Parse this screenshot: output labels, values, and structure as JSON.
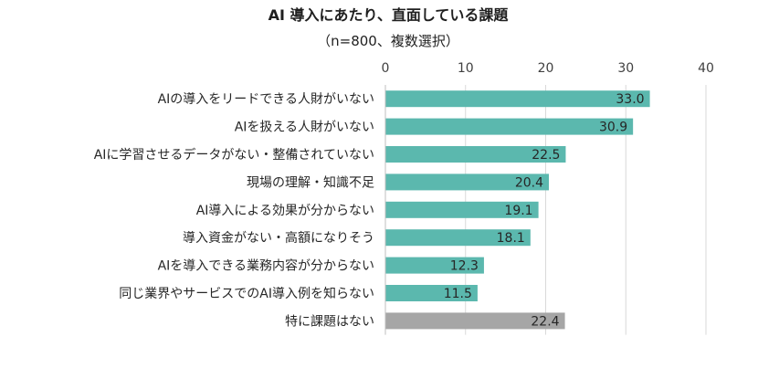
{
  "chart_data": {
    "type": "bar",
    "orientation": "horizontal",
    "title": "AI 導入にあたり、直面している課題",
    "subtitle": "（n=800、複数選択）",
    "categories": [
      "AIの導入をリードできる人財がいない",
      "AIを扱える人財がいない",
      "AIに学習させるデータがない・整備されていない",
      "現場の理解・知識不足",
      "AI導入による効果が分からない",
      "導入資金がない・高額になりそう",
      "AIを導入できる業務内容が分からない",
      "同じ業界やサービスでのAI導入例を知らない",
      "特に課題はない"
    ],
    "values": [
      33.0,
      30.9,
      22.5,
      20.4,
      19.1,
      18.1,
      12.3,
      11.5,
      22.4
    ],
    "value_labels": [
      "33.0",
      "30.9",
      "22.5",
      "20.4",
      "19.1",
      "18.1",
      "12.3",
      "11.5",
      "22.4"
    ],
    "bar_colors": [
      "#5bb8ae",
      "#5bb8ae",
      "#5bb8ae",
      "#5bb8ae",
      "#5bb8ae",
      "#5bb8ae",
      "#5bb8ae",
      "#5bb8ae",
      "#a6a6a6"
    ],
    "xlim": [
      0,
      40
    ],
    "xticks": [
      0,
      10,
      20,
      30,
      40
    ],
    "xtick_labels": [
      "0",
      "10",
      "20",
      "30",
      "40"
    ],
    "x_axis_position": "top",
    "xlabel": "",
    "ylabel": "",
    "grid": true,
    "legend": false,
    "colors": {
      "accent": "#5bb8ae",
      "neutral": "#a6a6a6",
      "grid": "#d9d9d9",
      "axis": "#bfbfbf"
    }
  }
}
